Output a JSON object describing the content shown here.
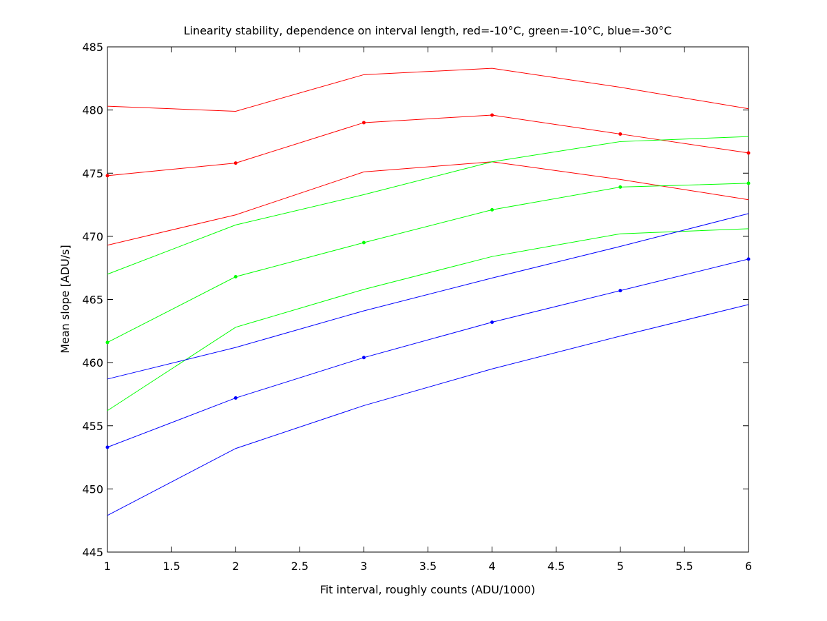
{
  "chart_data": {
    "type": "line",
    "title": "Linearity stability, dependence on interval length, red=-10°C, green=-10°C, blue=-30°C",
    "xlabel": "Fit interval, roughly counts (ADU/1000)",
    "ylabel": "Mean slope [ADU/s]",
    "xlim": [
      1,
      6
    ],
    "ylim": [
      445,
      485
    ],
    "xticks": [
      1,
      1.5,
      2,
      2.5,
      3,
      3.5,
      4,
      4.5,
      5,
      5.5,
      6
    ],
    "xtick_labels": [
      "1",
      "1.5",
      "2",
      "2.5",
      "3",
      "3.5",
      "4",
      "4.5",
      "5",
      "5.5",
      "6"
    ],
    "yticks": [
      445,
      450,
      455,
      460,
      465,
      470,
      475,
      480,
      485
    ],
    "ytick_labels": [
      "445",
      "450",
      "455",
      "460",
      "465",
      "470",
      "475",
      "480",
      "485"
    ],
    "grid": false,
    "legend": "none",
    "x": [
      1,
      2,
      3,
      4,
      5,
      6
    ],
    "series": [
      {
        "color": "#ff0000",
        "markers": false,
        "values": [
          480.3,
          479.9,
          482.8,
          483.3,
          481.8,
          480.1
        ]
      },
      {
        "color": "#ff0000",
        "markers": true,
        "values": [
          474.8,
          475.8,
          479.0,
          479.6,
          478.1,
          476.6
        ]
      },
      {
        "color": "#ff0000",
        "markers": false,
        "values": [
          469.3,
          471.7,
          475.1,
          475.9,
          474.5,
          472.9
        ]
      },
      {
        "color": "#00ff00",
        "markers": false,
        "values": [
          467.0,
          470.9,
          473.3,
          475.9,
          477.5,
          477.9
        ]
      },
      {
        "color": "#00ff00",
        "markers": true,
        "values": [
          461.6,
          466.8,
          469.5,
          472.1,
          473.9,
          474.2
        ]
      },
      {
        "color": "#00ff00",
        "markers": false,
        "values": [
          456.2,
          462.8,
          465.8,
          468.4,
          470.2,
          470.6
        ]
      },
      {
        "color": "#0000ff",
        "markers": false,
        "values": [
          458.7,
          461.2,
          464.1,
          466.7,
          469.2,
          471.8
        ]
      },
      {
        "color": "#0000ff",
        "markers": true,
        "values": [
          453.3,
          457.2,
          460.4,
          463.2,
          465.7,
          468.2
        ]
      },
      {
        "color": "#0000ff",
        "markers": false,
        "values": [
          447.9,
          453.2,
          456.6,
          459.5,
          462.1,
          464.6
        ]
      }
    ]
  }
}
